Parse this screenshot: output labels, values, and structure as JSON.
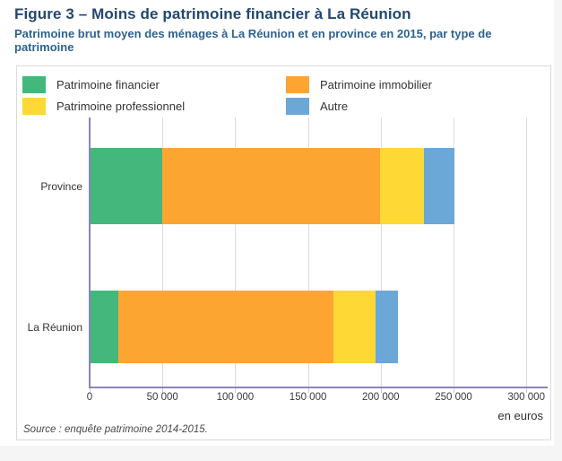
{
  "figure": {
    "title": "Figure 3 – Moins de patrimoine financier à La Réunion",
    "subtitle": "Patrimoine brut moyen des ménages à La Réunion et en province en 2015, par type de patrimoine",
    "source": "Source : enquête patrimoine 2014-2015.",
    "unit_label": "en euros"
  },
  "colors": {
    "title_text": "#24486e",
    "subtitle_text": "#2d6290",
    "axis": "#8a84ba",
    "grid": "#dcdcdc",
    "panel_border": "#dadada",
    "financier": "#44b77c",
    "immobilier": "#fca631",
    "professionnel": "#fed834",
    "autre": "#6ba7d7"
  },
  "legend": {
    "columns": [
      [
        {
          "key": "financier",
          "label": "Patrimoine financier"
        },
        {
          "key": "professionnel",
          "label": "Patrimoine professionnel"
        }
      ],
      [
        {
          "key": "immobilier",
          "label": "Patrimoine immobilier"
        },
        {
          "key": "autre",
          "label": "Autre"
        }
      ]
    ]
  },
  "chart_data": {
    "type": "bar",
    "orientation": "horizontal-stacked",
    "title": "Patrimoine brut moyen des ménages à La Réunion et en province en 2015, par type de patrimoine",
    "categories": [
      "Province",
      "La Réunion"
    ],
    "series": [
      {
        "name": "Patrimoine financier",
        "key": "financier",
        "color": "#44b77c",
        "values": [
          49000,
          19000
        ]
      },
      {
        "name": "Patrimoine immobilier",
        "key": "immobilier",
        "color": "#fca631",
        "values": [
          150000,
          148000
        ]
      },
      {
        "name": "Patrimoine professionnel",
        "key": "professionnel",
        "color": "#fed834",
        "values": [
          30000,
          29000
        ]
      },
      {
        "name": "Autre",
        "key": "autre",
        "color": "#6ba7d7",
        "values": [
          21000,
          15000
        ]
      }
    ],
    "xlabel": "en euros",
    "xlim": [
      0,
      300000
    ],
    "xticks": [
      0,
      50000,
      100000,
      150000,
      200000,
      250000,
      300000
    ],
    "xtick_labels": [
      "0",
      "50 000",
      "100 000",
      "150 000",
      "200 000",
      "250 000",
      "300 000"
    ],
    "grid": true,
    "legend_position": "top"
  }
}
